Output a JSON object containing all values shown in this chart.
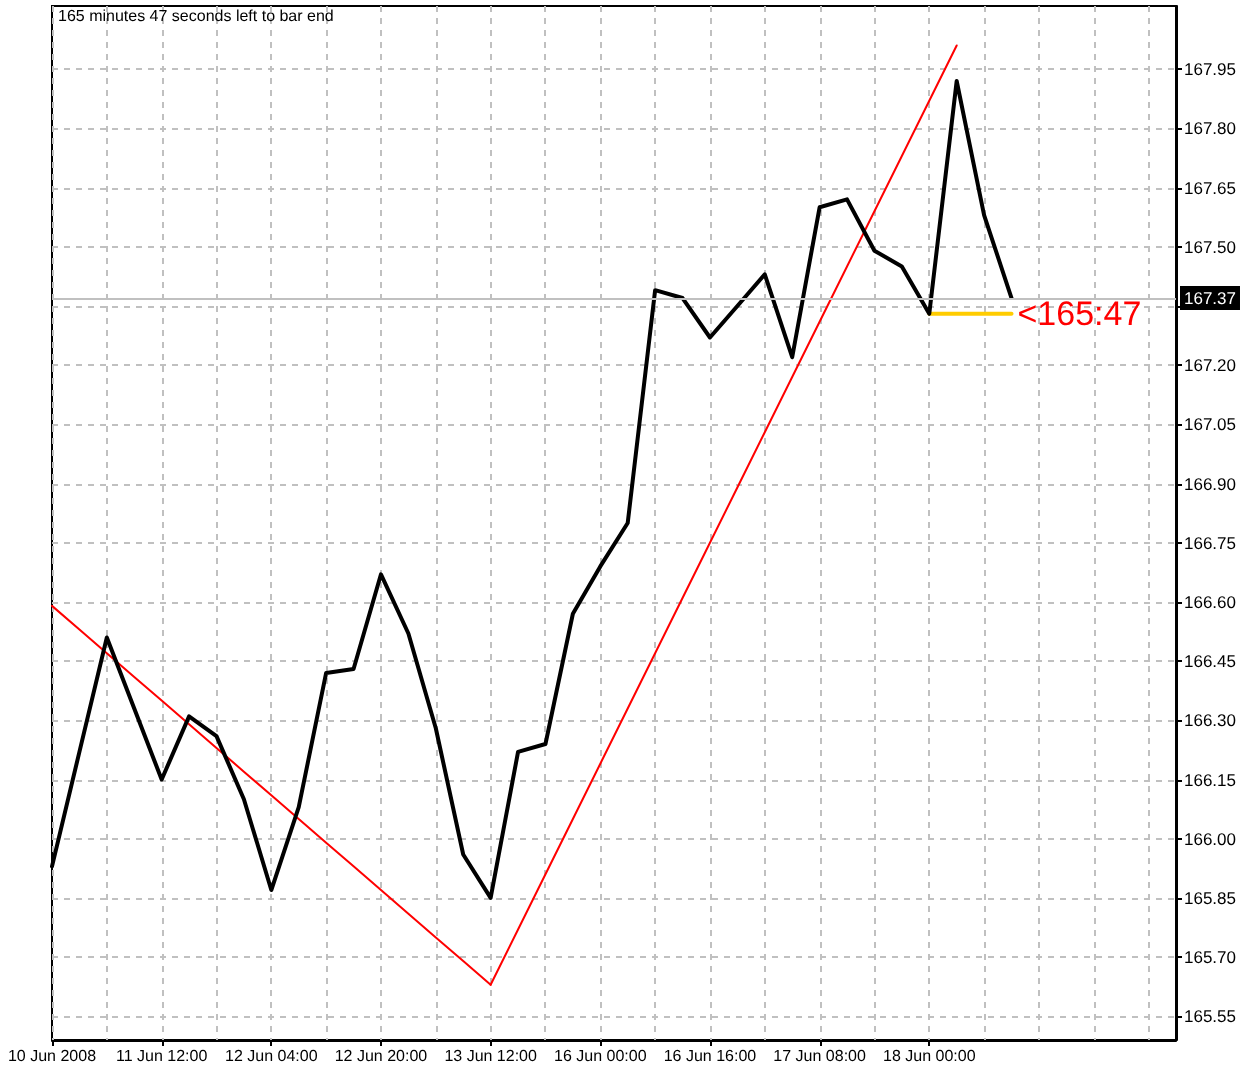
{
  "chart_data": {
    "type": "line",
    "categories": [
      "10 Jun 2008",
      null,
      null,
      null,
      "11 Jun 12:00",
      null,
      null,
      null,
      "12 Jun 04:00",
      null,
      null,
      null,
      "12 Jun 20:00",
      null,
      null,
      null,
      "13 Jun 12:00",
      null,
      null,
      null,
      "16 Jun 00:00",
      null,
      null,
      null,
      "16 Jun 16:00",
      null,
      null,
      null,
      "17 Jun 08:00",
      null,
      null,
      null,
      "18 Jun 00:00",
      null,
      null,
      null,
      null,
      null,
      null,
      null,
      null,
      null
    ],
    "series": [
      {
        "color": "#000000",
        "values": [
          165.93,
          166.22,
          166.51,
          166.33,
          166.15,
          166.31,
          166.26,
          166.1,
          165.87,
          166.08,
          166.42,
          166.43,
          166.67,
          166.52,
          166.28,
          165.96,
          165.85,
          166.22,
          166.24,
          166.57,
          166.69,
          166.8,
          167.39,
          167.37,
          167.27,
          167.35,
          167.43,
          167.22,
          167.6,
          167.62,
          167.49,
          167.45,
          167.33,
          167.92,
          167.58,
          167.37,
          null,
          null,
          null,
          null,
          null,
          null
        ]
      },
      {
        "color": "#ff0000",
        "values": [
          166.59,
          166.53,
          166.47,
          166.41,
          166.35,
          166.29,
          166.23,
          166.17,
          166.11,
          166.05,
          165.99,
          165.93,
          165.87,
          165.81,
          165.75,
          165.69,
          165.63,
          null,
          null,
          null,
          null,
          null,
          null,
          null,
          null,
          null,
          null,
          null,
          null,
          null,
          null,
          null,
          null,
          null,
          null,
          null,
          null,
          null,
          null,
          null,
          null,
          null
        ]
      },
      {
        "color": "#ff0000",
        "values": [
          null,
          null,
          null,
          null,
          null,
          null,
          null,
          null,
          null,
          null,
          null,
          null,
          null,
          null,
          null,
          null,
          165.63,
          165.77,
          165.91,
          166.05,
          166.19,
          166.33,
          166.47,
          166.61,
          166.75,
          166.89,
          167.03,
          167.17,
          167.31,
          167.45,
          167.59,
          167.73,
          167.87,
          168.01,
          null,
          null,
          null,
          null,
          null,
          null,
          null,
          null
        ]
      },
      {
        "color": "#ffcc00",
        "values": [
          null,
          null,
          null,
          null,
          null,
          null,
          null,
          null,
          null,
          null,
          null,
          null,
          null,
          null,
          null,
          null,
          null,
          null,
          null,
          null,
          null,
          null,
          null,
          null,
          null,
          null,
          null,
          null,
          null,
          null,
          null,
          null,
          167.33,
          167.33,
          167.33,
          167.33,
          null,
          null,
          null,
          null,
          null,
          null
        ]
      }
    ],
    "ylim": [
      165.49,
      168.11
    ],
    "yticks": [
      165.55,
      {
        "value": 165.7,
        "label": "165.70"
      },
      165.85,
      {
        "value": 166,
        "label": "166.00"
      },
      166.15,
      {
        "value": 166.3,
        "label": "166.30"
      },
      166.45,
      {
        "value": 166.6,
        "label": "166.60"
      },
      166.75,
      {
        "value": 166.9,
        "label": "166.90"
      },
      167.05,
      {
        "value": 167.2,
        "label": "167.20"
      },
      {
        "value": 167.35,
        "label": null
      },
      {
        "value": 167.5,
        "label": "167.50"
      },
      167.65,
      {
        "value": 167.8,
        "label": "167.80"
      },
      167.95
    ],
    "ref_lines": [
      {
        "axis": "y",
        "value": 167.37,
        "label": "167.37",
        "color": "#c0c0c0"
      }
    ],
    "annotations": [
      "165 minutes 47 seconds left to bar end",
      "<165:47"
    ],
    "grid": true,
    "marker": "none",
    "line_style": "solid"
  }
}
